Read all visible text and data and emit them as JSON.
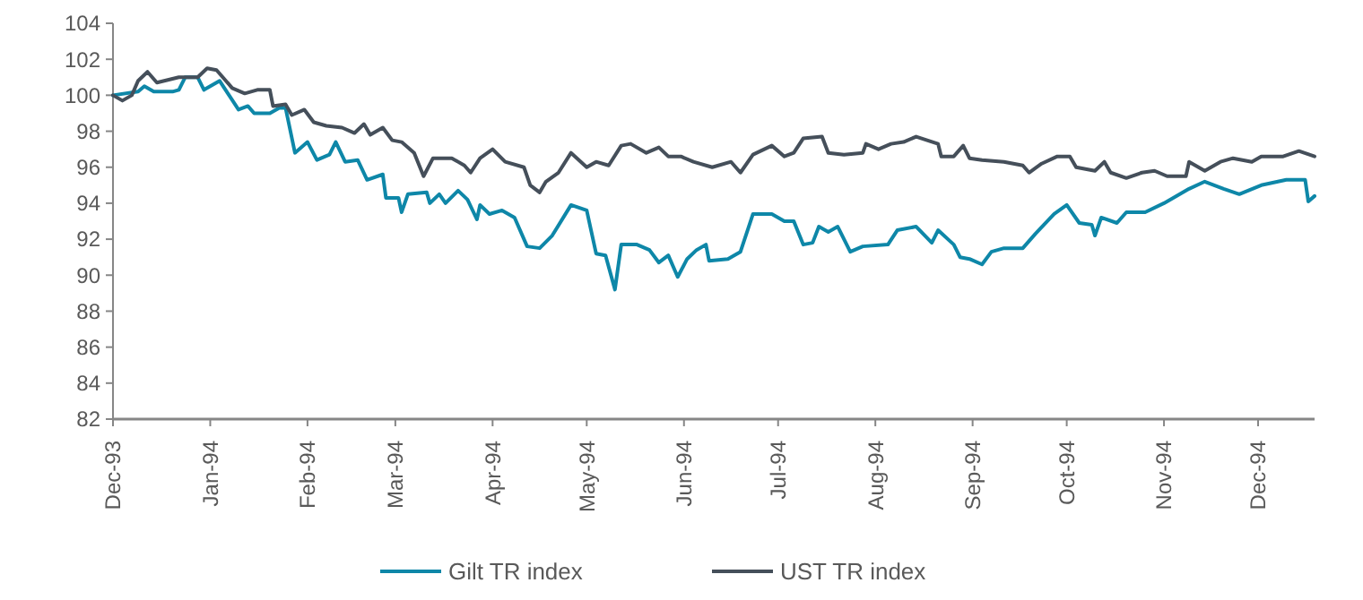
{
  "chart_data": {
    "type": "line",
    "xlim": [
      "1993-12-01",
      "1994-12-19"
    ],
    "xticks": [
      {
        "value": "1993-12-01",
        "label": "Dec-93"
      },
      {
        "value": "1994-01-01",
        "label": "Jan-94"
      },
      {
        "value": "1994-02-01",
        "label": "Feb-94"
      },
      {
        "value": "1994-03-01",
        "label": "Mar-94"
      },
      {
        "value": "1994-04-01",
        "label": "Apr-94"
      },
      {
        "value": "1994-05-01",
        "label": "May-94"
      },
      {
        "value": "1994-06-01",
        "label": "Jun-94"
      },
      {
        "value": "1994-07-01",
        "label": "Jul-94"
      },
      {
        "value": "1994-08-01",
        "label": "Aug-94"
      },
      {
        "value": "1994-09-01",
        "label": "Sep-94"
      },
      {
        "value": "1994-10-01",
        "label": "Oct-94"
      },
      {
        "value": "1994-11-01",
        "label": "Nov-94"
      },
      {
        "value": "1994-12-01",
        "label": "Dec-94"
      }
    ],
    "ylim": [
      82,
      104
    ],
    "yticks": [
      82,
      84,
      86,
      88,
      90,
      92,
      94,
      96,
      98,
      100,
      102,
      104
    ],
    "legend": "bottom",
    "grid": false,
    "series": [
      {
        "name": "Gilt TR index",
        "color": "#0e87a8",
        "x": [
          "1993-12-01",
          "1993-12-09",
          "1993-12-11",
          "1993-12-14",
          "1993-12-20",
          "1993-12-22",
          "1993-12-24",
          "1993-12-28",
          "1993-12-30",
          "1994-01-04",
          "1994-01-07",
          "1994-01-10",
          "1994-01-13",
          "1994-01-15",
          "1994-01-20",
          "1994-01-23",
          "1994-01-25",
          "1994-01-28",
          "1994-02-01",
          "1994-02-04",
          "1994-02-08",
          "1994-02-10",
          "1994-02-13",
          "1994-02-17",
          "1994-02-20",
          "1994-02-25",
          "1994-02-26",
          "1994-03-02",
          "1994-03-03",
          "1994-03-05",
          "1994-03-11",
          "1994-03-12",
          "1994-03-15",
          "1994-03-17",
          "1994-03-21",
          "1994-03-24",
          "1994-03-27",
          "1994-03-28",
          "1994-03-31",
          "1994-04-04",
          "1994-04-08",
          "1994-04-12",
          "1994-04-16",
          "1994-04-20",
          "1994-04-26",
          "1994-05-01",
          "1994-05-04",
          "1994-05-07",
          "1994-05-10",
          "1994-05-12",
          "1994-05-17",
          "1994-05-21",
          "1994-05-24",
          "1994-05-27",
          "1994-05-30",
          "1994-06-02",
          "1994-06-05",
          "1994-06-08",
          "1994-06-09",
          "1994-06-15",
          "1994-06-19",
          "1994-06-23",
          "1994-06-29",
          "1994-07-03",
          "1994-07-06",
          "1994-07-09",
          "1994-07-12",
          "1994-07-14",
          "1994-07-17",
          "1994-07-20",
          "1994-07-24",
          "1994-07-28",
          "1994-08-05",
          "1994-08-08",
          "1994-08-14",
          "1994-08-19",
          "1994-08-21",
          "1994-08-26",
          "1994-08-28",
          "1994-08-31",
          "1994-09-04",
          "1994-09-07",
          "1994-09-11",
          "1994-09-17",
          "1994-09-21",
          "1994-09-27",
          "1994-10-01",
          "1994-10-05",
          "1994-10-09",
          "1994-10-10",
          "1994-10-12",
          "1994-10-17",
          "1994-10-20",
          "1994-10-26",
          "1994-11-01",
          "1994-11-09",
          "1994-11-14",
          "1994-11-20",
          "1994-11-25",
          "1994-12-02",
          "1994-12-10",
          "1994-12-16",
          "1994-12-17",
          "1994-12-19"
        ],
        "values": [
          100,
          100.2,
          100.5,
          100.2,
          100.2,
          100.3,
          101,
          101,
          100.3,
          100.8,
          100,
          99.2,
          99.4,
          99,
          99,
          99.3,
          99.3,
          96.8,
          97.4,
          96.4,
          96.7,
          97.4,
          96.3,
          96.4,
          95.3,
          95.6,
          94.3,
          94.3,
          93.5,
          94.5,
          94.6,
          94,
          94.5,
          94,
          94.7,
          94.2,
          93.1,
          93.9,
          93.4,
          93.6,
          93.2,
          91.6,
          91.5,
          92.2,
          93.9,
          93.6,
          91.2,
          91.1,
          89.2,
          91.7,
          91.7,
          91.4,
          90.7,
          91.1,
          89.9,
          90.9,
          91.4,
          91.7,
          90.8,
          90.9,
          91.3,
          93.4,
          93.4,
          93,
          93,
          91.7,
          91.8,
          92.7,
          92.4,
          92.7,
          91.3,
          91.6,
          91.7,
          92.5,
          92.7,
          91.8,
          92.5,
          91.7,
          91,
          90.9,
          90.6,
          91.3,
          91.5,
          91.5,
          92.3,
          93.4,
          93.9,
          92.9,
          92.8,
          92.2,
          93.2,
          92.9,
          93.5,
          93.5,
          94,
          94.8,
          95.2,
          94.8,
          94.5,
          95,
          95.3,
          95.3,
          94.1,
          94.4
        ]
      },
      {
        "name": "UST TR index",
        "color": "#454f5a",
        "x": [
          "1993-12-01",
          "1993-12-04",
          "1993-12-07",
          "1993-12-09",
          "1993-12-12",
          "1993-12-15",
          "1993-12-22",
          "1993-12-28",
          "1993-12-31",
          "1994-01-03",
          "1994-01-05",
          "1994-01-08",
          "1994-01-12",
          "1994-01-16",
          "1994-01-20",
          "1994-01-21",
          "1994-01-25",
          "1994-01-27",
          "1994-01-31",
          "1994-02-03",
          "1994-02-07",
          "1994-02-12",
          "1994-02-16",
          "1994-02-19",
          "1994-02-21",
          "1994-02-25",
          "1994-02-28",
          "1994-03-03",
          "1994-03-07",
          "1994-03-10",
          "1994-03-13",
          "1994-03-19",
          "1994-03-23",
          "1994-03-25",
          "1994-03-28",
          "1994-04-01",
          "1994-04-05",
          "1994-04-11",
          "1994-04-13",
          "1994-04-16",
          "1994-04-18",
          "1994-04-22",
          "1994-04-26",
          "1994-05-01",
          "1994-05-04",
          "1994-05-08",
          "1994-05-12",
          "1994-05-15",
          "1994-05-20",
          "1994-05-24",
          "1994-05-27",
          "1994-05-31",
          "1994-06-04",
          "1994-06-10",
          "1994-06-16",
          "1994-06-19",
          "1994-06-23",
          "1994-06-29",
          "1994-07-03",
          "1994-07-06",
          "1994-07-09",
          "1994-07-15",
          "1994-07-17",
          "1994-07-22",
          "1994-07-28",
          "1994-07-29",
          "1994-08-02",
          "1994-08-06",
          "1994-08-10",
          "1994-08-14",
          "1994-08-21",
          "1994-08-22",
          "1994-08-26",
          "1994-08-29",
          "1994-08-31",
          "1994-09-04",
          "1994-09-11",
          "1994-09-17",
          "1994-09-19",
          "1994-09-23",
          "1994-09-28",
          "1994-10-02",
          "1994-10-04",
          "1994-10-10",
          "1994-10-13",
          "1994-10-15",
          "1994-10-20",
          "1994-10-25",
          "1994-10-29",
          "1994-11-02",
          "1994-11-08",
          "1994-11-09",
          "1994-11-14",
          "1994-11-19",
          "1994-11-23",
          "1994-11-29",
          "1994-12-02",
          "1994-12-09",
          "1994-12-14",
          "1994-12-19"
        ],
        "values": [
          100,
          99.7,
          100,
          100.8,
          101.3,
          100.7,
          101,
          101,
          101.5,
          101.4,
          101,
          100.4,
          100.1,
          100.3,
          100.3,
          99.4,
          99.5,
          98.9,
          99.2,
          98.5,
          98.3,
          98.2,
          97.9,
          98.4,
          97.8,
          98.2,
          97.5,
          97.4,
          96.8,
          95.5,
          96.5,
          96.5,
          96.1,
          95.7,
          96.5,
          97,
          96.3,
          96,
          95,
          94.6,
          95.2,
          95.7,
          96.8,
          96,
          96.3,
          96.1,
          97.2,
          97.3,
          96.8,
          97.1,
          96.6,
          96.6,
          96.3,
          96,
          96.3,
          95.7,
          96.7,
          97.2,
          96.6,
          96.8,
          97.6,
          97.7,
          96.8,
          96.7,
          96.8,
          97.3,
          97,
          97.3,
          97.4,
          97.7,
          97.3,
          96.6,
          96.6,
          97.2,
          96.5,
          96.4,
          96.3,
          96.1,
          95.7,
          96.2,
          96.6,
          96.6,
          96,
          95.8,
          96.3,
          95.7,
          95.4,
          95.7,
          95.8,
          95.5,
          95.5,
          96.3,
          95.8,
          96.3,
          96.5,
          96.3,
          96.6,
          96.6,
          96.9,
          96.6
        ]
      }
    ]
  }
}
